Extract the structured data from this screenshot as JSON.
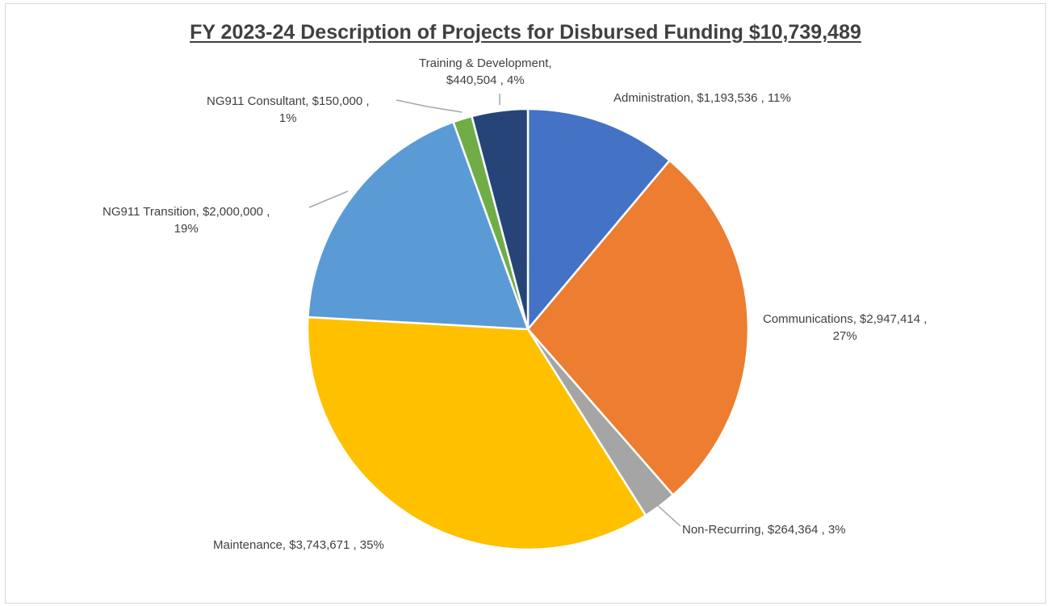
{
  "chart_data": {
    "type": "pie",
    "title": "FY 2023-24 Description of Projects for Disbursed Funding $10,739,489",
    "slices": [
      {
        "category": "Administration",
        "value": 1193536,
        "percent": 11,
        "color": "#4472C4",
        "label_lines": [
          "Administration, $1,193,536 , 11%"
        ]
      },
      {
        "category": "Communications",
        "value": 2947414,
        "percent": 27,
        "color": "#ED7D31",
        "label_lines": [
          "Communications, $2,947,414 ,",
          "27%"
        ]
      },
      {
        "category": "Non-Recurring",
        "value": 264364,
        "percent": 3,
        "color": "#A5A5A5",
        "label_lines": [
          "Non-Recurring, $264,364 , 3%"
        ]
      },
      {
        "category": "Maintenance",
        "value": 3743671,
        "percent": 35,
        "color": "#FFC000",
        "label_lines": [
          "Maintenance, $3,743,671 , 35%"
        ]
      },
      {
        "category": "NG911 Transition",
        "value": 2000000,
        "percent": 19,
        "color": "#5B9BD5",
        "label_lines": [
          "NG911 Transition, $2,000,000 ,",
          "19%"
        ]
      },
      {
        "category": "NG911 Consultant",
        "value": 150000,
        "percent": 1,
        "color": "#70AD47",
        "label_lines": [
          "NG911 Consultant, $150,000 ,",
          "1%"
        ]
      },
      {
        "category": "Training & Development",
        "value": 440504,
        "percent": 4,
        "color": "#264478",
        "label_lines": [
          "Training & Development,",
          "$440,504 , 4%"
        ]
      }
    ],
    "legend": "none",
    "data_labels": "outside"
  }
}
